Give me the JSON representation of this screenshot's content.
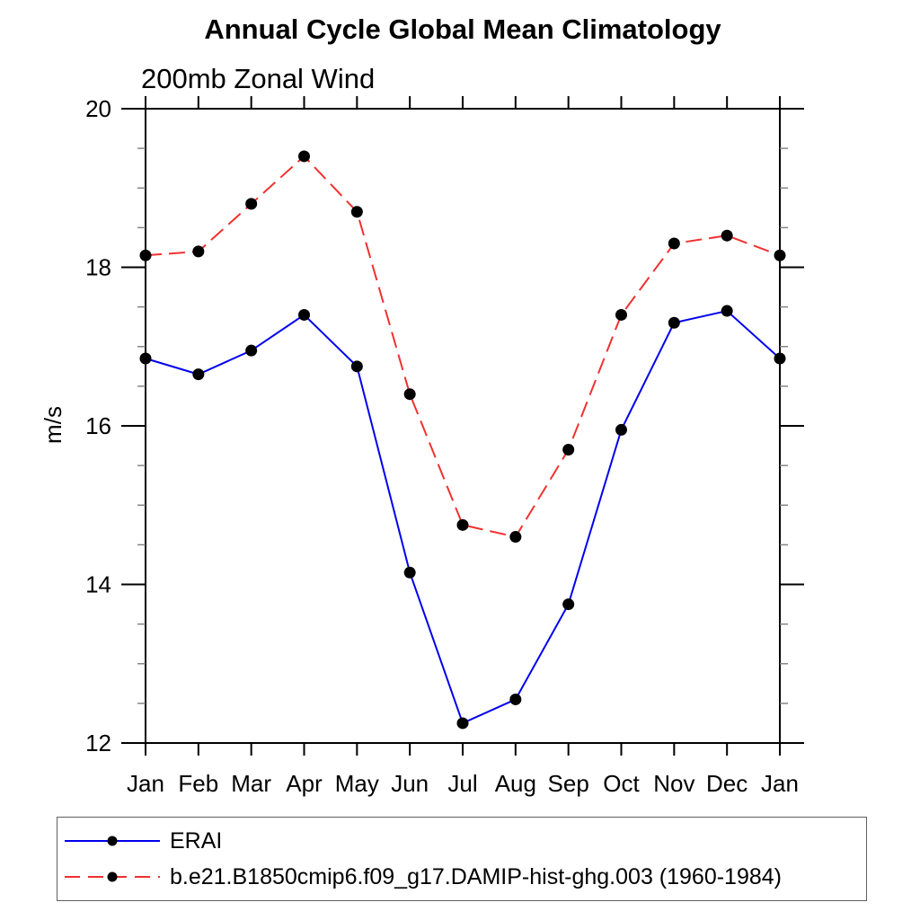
{
  "chart_data": {
    "type": "line",
    "title": "Annual Cycle Global Mean Climatology",
    "subtitle": "200mb Zonal Wind",
    "ylabel": "m/s",
    "categories": [
      "Jan",
      "Feb",
      "Mar",
      "Apr",
      "May",
      "Jun",
      "Jul",
      "Aug",
      "Sep",
      "Oct",
      "Nov",
      "Dec",
      "Jan"
    ],
    "yticks": [
      12,
      14,
      16,
      18,
      20
    ],
    "minor_tick_step": 0.5,
    "ylim": [
      12,
      20
    ],
    "grid": false,
    "legend_position": "bottom",
    "axis_color": "#000000",
    "minor_tick_color": "#7e7e7e",
    "series": [
      {
        "name": "ERAI",
        "color": "#0000ee",
        "line_style": "solid",
        "marker": "filled-circle",
        "marker_color": "#000000",
        "values": [
          16.85,
          16.65,
          16.95,
          17.4,
          16.75,
          14.15,
          12.25,
          12.55,
          13.75,
          15.95,
          17.3,
          17.45,
          16.85
        ]
      },
      {
        "name": "b.e21.B1850cmip6.f09_g17.DAMIP-hist-ghg.003 (1960-1984)",
        "color": "#f13030",
        "line_style": "dashed",
        "marker": "filled-circle",
        "marker_color": "#000000",
        "values": [
          18.15,
          18.2,
          18.8,
          19.4,
          18.7,
          16.4,
          14.75,
          14.6,
          15.7,
          17.4,
          18.3,
          18.4,
          18.15
        ]
      }
    ]
  }
}
